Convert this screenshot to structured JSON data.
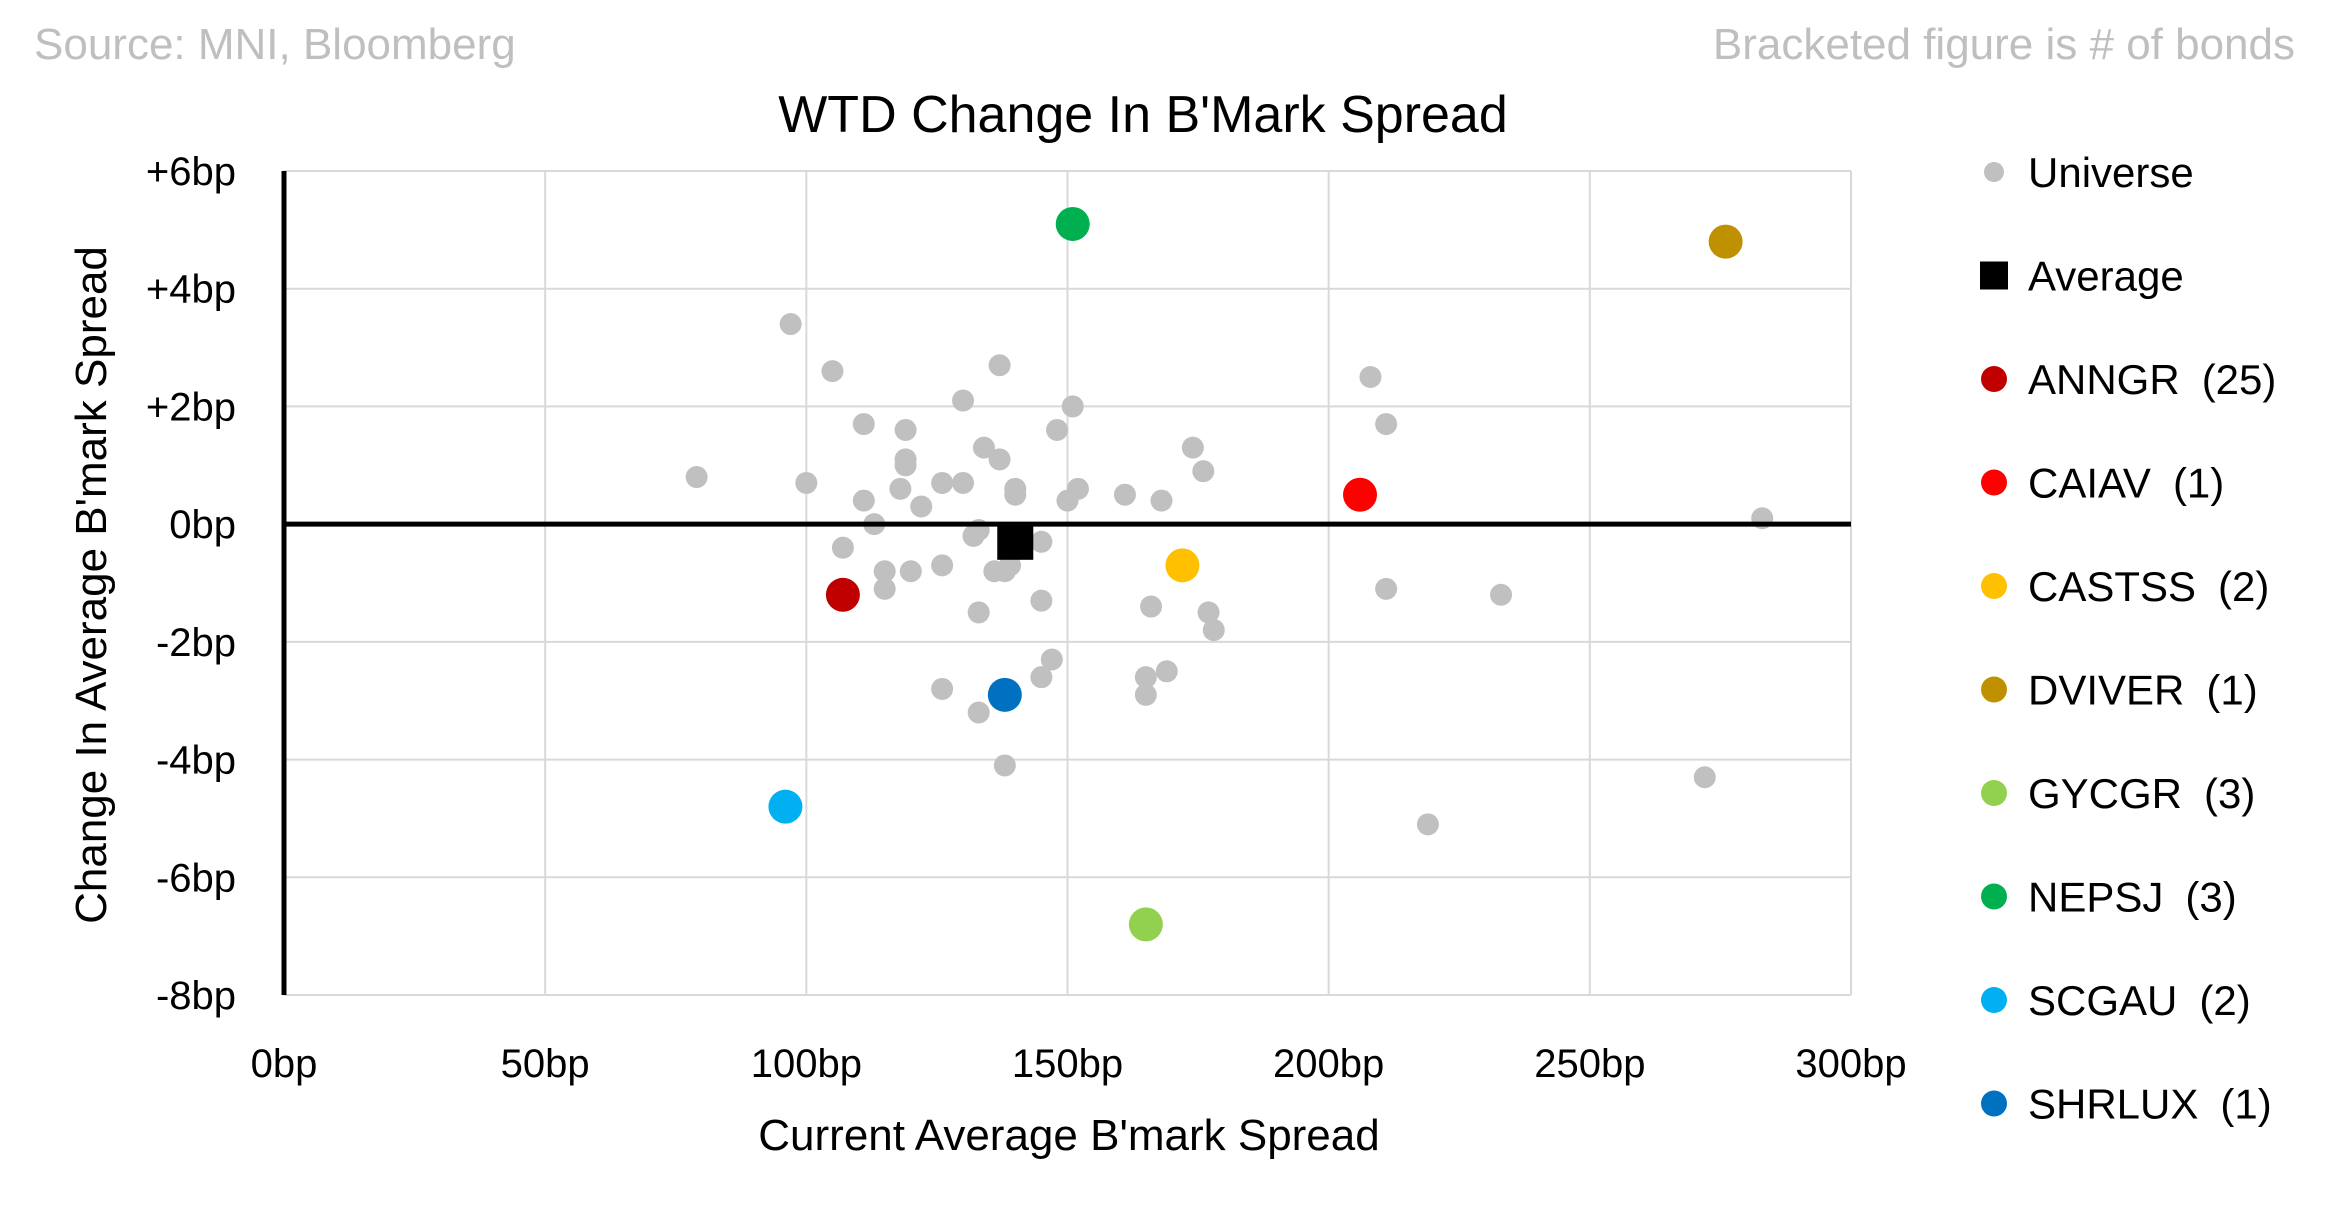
{
  "header": {
    "source": "Source: MNI, Bloomberg",
    "note": "Bracketed figure is # of bonds"
  },
  "chart_data": {
    "type": "scatter",
    "title": "WTD Change In B'Mark Spread",
    "xlabel": "Current Average B'mark Spread",
    "ylabel": "Change In Average B'mark Spread",
    "xlim": [
      0,
      300
    ],
    "ylim": [
      -8,
      6
    ],
    "x_ticks": [
      {
        "value": 0,
        "label": "0bp"
      },
      {
        "value": 50,
        "label": "50bp"
      },
      {
        "value": 100,
        "label": "100bp"
      },
      {
        "value": 150,
        "label": "150bp"
      },
      {
        "value": 200,
        "label": "200bp"
      },
      {
        "value": 250,
        "label": "250bp"
      },
      {
        "value": 300,
        "label": "300bp"
      }
    ],
    "y_ticks": [
      {
        "value": 6,
        "label": "+6bp",
        "color": "#ff0000"
      },
      {
        "value": 4,
        "label": "+4bp",
        "color": "#ff0000"
      },
      {
        "value": 2,
        "label": "+2bp",
        "color": "#ff0000"
      },
      {
        "value": 0,
        "label": "0bp",
        "color": "#000000"
      },
      {
        "value": -2,
        "label": "-2bp",
        "color": "#8cc63f"
      },
      {
        "value": -4,
        "label": "-4bp",
        "color": "#8cc63f"
      },
      {
        "value": -6,
        "label": "-6bp",
        "color": "#8cc63f"
      },
      {
        "value": -8,
        "label": "-8bp",
        "color": "#8cc63f"
      }
    ],
    "grid": true,
    "legend_position": "right",
    "series": [
      {
        "name": "Universe",
        "color": "#c0c0c0",
        "marker": "circle-small",
        "points": [
          [
            79,
            0.8
          ],
          [
            97,
            3.4
          ],
          [
            100,
            0.7
          ],
          [
            105,
            2.6
          ],
          [
            107,
            -0.4
          ],
          [
            111,
            1.7
          ],
          [
            111,
            0.4
          ],
          [
            113,
            0.0
          ],
          [
            115,
            -0.8
          ],
          [
            115,
            -1.1
          ],
          [
            118,
            0.6
          ],
          [
            119,
            1.6
          ],
          [
            119,
            1.1
          ],
          [
            119,
            1.0
          ],
          [
            120,
            -0.8
          ],
          [
            122,
            0.3
          ],
          [
            126,
            0.7
          ],
          [
            126,
            -0.7
          ],
          [
            126,
            -2.8
          ],
          [
            130,
            2.1
          ],
          [
            130,
            0.7
          ],
          [
            132,
            -0.2
          ],
          [
            133,
            -0.1
          ],
          [
            133,
            -1.5
          ],
          [
            133,
            -3.2
          ],
          [
            134,
            1.3
          ],
          [
            136,
            -0.8
          ],
          [
            137,
            2.7
          ],
          [
            137,
            1.1
          ],
          [
            138,
            -0.8
          ],
          [
            138,
            -4.1
          ],
          [
            139,
            -0.7
          ],
          [
            140,
            0.5
          ],
          [
            140,
            0.6
          ],
          [
            145,
            -0.3
          ],
          [
            145,
            -1.3
          ],
          [
            145,
            -2.6
          ],
          [
            147,
            -2.3
          ],
          [
            148,
            1.6
          ],
          [
            150,
            0.4
          ],
          [
            151,
            2.0
          ],
          [
            152,
            0.6
          ],
          [
            161,
            0.5
          ],
          [
            165,
            -2.9
          ],
          [
            165,
            -2.6
          ],
          [
            166,
            -1.4
          ],
          [
            169,
            -2.5
          ],
          [
            168,
            0.4
          ],
          [
            174,
            1.3
          ],
          [
            176,
            0.9
          ],
          [
            177,
            -1.5
          ],
          [
            178,
            -1.8
          ],
          [
            208,
            2.5
          ],
          [
            211,
            1.7
          ],
          [
            211,
            -1.1
          ],
          [
            219,
            -5.1
          ],
          [
            233,
            -1.2
          ],
          [
            272,
            -4.3
          ],
          [
            283,
            0.1
          ]
        ]
      },
      {
        "name": "Average",
        "color": "#000000",
        "marker": "square",
        "points": [
          [
            140,
            -0.3
          ]
        ]
      },
      {
        "name": "ANNGR",
        "count": "(25)",
        "color": "#c00000",
        "marker": "circle",
        "points": [
          [
            107,
            -1.2
          ]
        ]
      },
      {
        "name": "CAIAV",
        "count": "(1)",
        "color": "#ff0000",
        "marker": "circle",
        "points": [
          [
            206,
            0.5
          ]
        ]
      },
      {
        "name": "CASTSS",
        "count": "(2)",
        "color": "#ffc000",
        "marker": "circle",
        "points": [
          [
            172,
            -0.7
          ]
        ]
      },
      {
        "name": "DVIVER",
        "count": "(1)",
        "color": "#bf9000",
        "marker": "circle",
        "points": [
          [
            276,
            4.8
          ]
        ]
      },
      {
        "name": "GYCGR",
        "count": "(3)",
        "color": "#92d050",
        "marker": "circle",
        "points": [
          [
            165,
            -6.8
          ]
        ]
      },
      {
        "name": "NEPSJ",
        "count": "(3)",
        "color": "#00b050",
        "marker": "circle",
        "points": [
          [
            151,
            5.1
          ]
        ]
      },
      {
        "name": "SCGAU",
        "count": "(2)",
        "color": "#00b0f0",
        "marker": "circle",
        "points": [
          [
            96,
            -4.8
          ]
        ]
      },
      {
        "name": "SHRLUX",
        "count": "(1)",
        "color": "#0070c0",
        "marker": "circle",
        "points": [
          [
            138,
            -2.9
          ]
        ]
      }
    ]
  }
}
